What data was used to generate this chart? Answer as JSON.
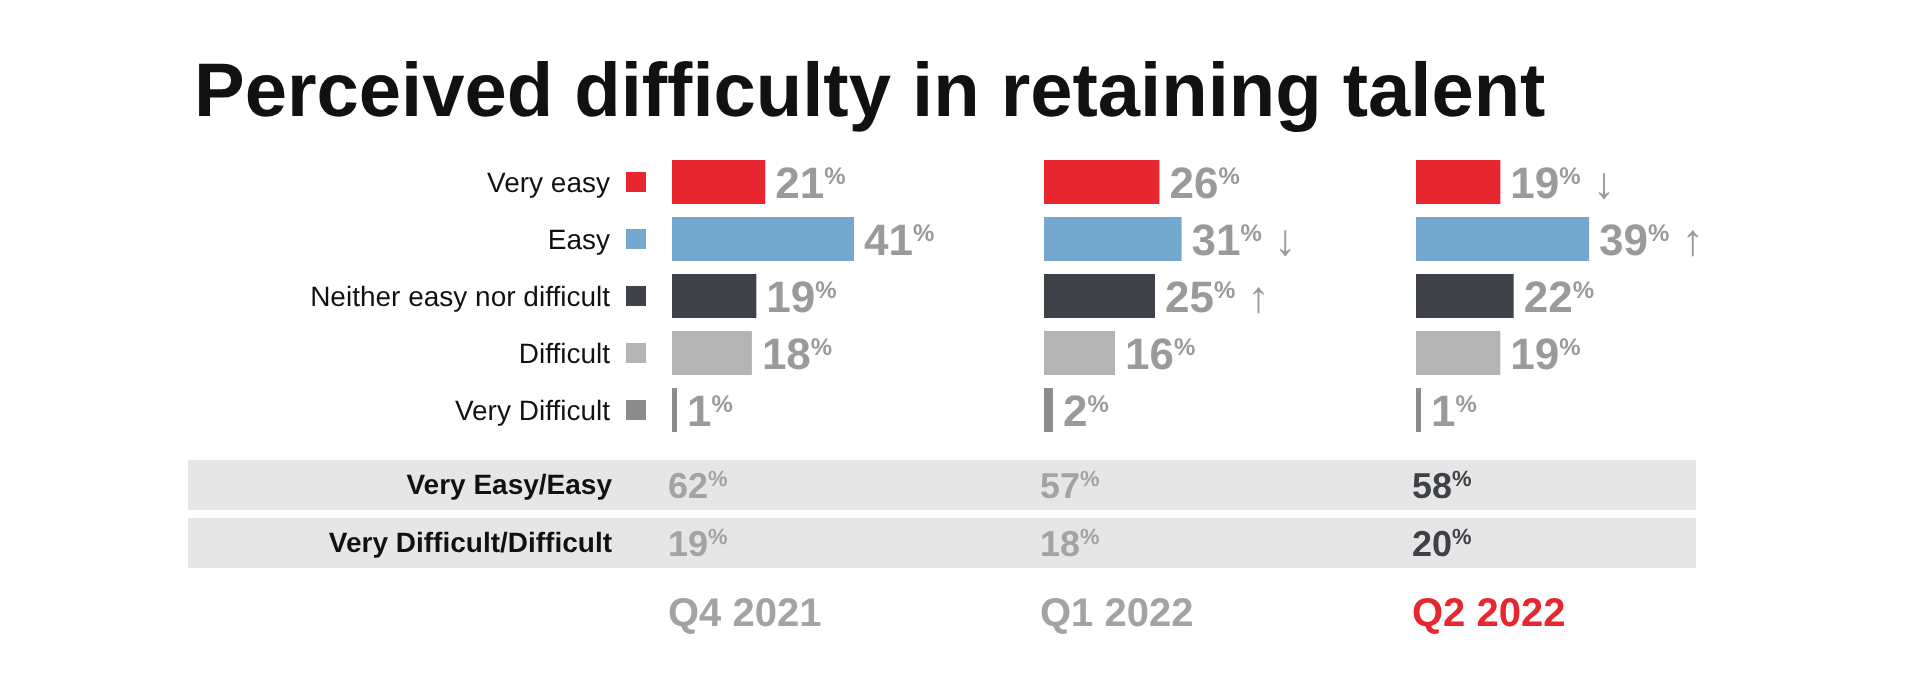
{
  "chart_data": [
    {
      "type": "bar",
      "orientation": "horizontal",
      "title": "Perceived difficulty in retaining talent",
      "categories": [
        "Very easy",
        "Easy",
        "Neither easy nor difficult",
        "Difficult",
        "Very Difficult"
      ],
      "values": [
        21,
        41,
        19,
        18,
        1
      ],
      "colors": [
        "#e8262f",
        "#74a8cf",
        "#3f4149",
        "#b5b4b4",
        "#8c8c8c"
      ],
      "value_labels": [
        "21$^{%}$",
        "41$^{%}$",
        "19$^{%}$",
        "18$^{%}$",
        "1$^{%}$"
      ]
    },
    {
      "type": "bar",
      "orientation": "horizontal",
      "categories": [
        null,
        null,
        null,
        null,
        null
      ],
      "values": [
        26,
        31,
        25,
        16,
        2
      ],
      "colors": [
        "#e8262f",
        "#74a8cf",
        "#3f4149",
        "#b5b4b4",
        "#8c8c8c"
      ],
      "value_labels": [
        "26$^{%}$",
        "31$^{%}$ ↓",
        "25$^{%}$ ↑",
        "16$^{%}$",
        "2$^{%}$"
      ]
    },
    {
      "type": "bar",
      "orientation": "horizontal",
      "categories": [
        null,
        null,
        null,
        null,
        null
      ],
      "values": [
        19,
        39,
        22,
        19,
        1
      ],
      "colors": [
        "#e8262f",
        "#74a8cf",
        "#3f4149",
        "#b5b4b4",
        "#8c8c8c"
      ],
      "value_labels": [
        "19$^{%}$ ↓",
        "39$^{%}$ ↑",
        "22$^{%}$",
        "19$^{%}$",
        "1$^{%}$"
      ]
    },
    {
      "type": "other",
      "categories": [
        "Very Easy/Easy",
        "Very Difficult/Difficult"
      ],
      "series": [
        {
          "name": "Q4 2021",
          "color": "#a3a3a3",
          "colors": [
            "#a3a3a3",
            "#a3a3a3"
          ],
          "values": [
            62,
            19
          ],
          "value_labels": [
            "62$^{%}$",
            "19$^{%}$"
          ]
        },
        {
          "name": "Q1 2022",
          "color": "#a3a3a3",
          "colors": [
            "#a3a3a3",
            "#a3a3a3"
          ],
          "values": [
            57,
            18
          ],
          "value_labels": [
            "57$^{%}$",
            "18$^{%}$"
          ]
        },
        {
          "name": "Q2 2022",
          "color": "#e8262f",
          "colors": [
            "#3f4149",
            "#3f4149"
          ],
          "values": [
            58,
            20
          ],
          "value_labels": [
            "58$^{%}$",
            "20$^{%}$"
          ]
        }
      ]
    }
  ]
}
